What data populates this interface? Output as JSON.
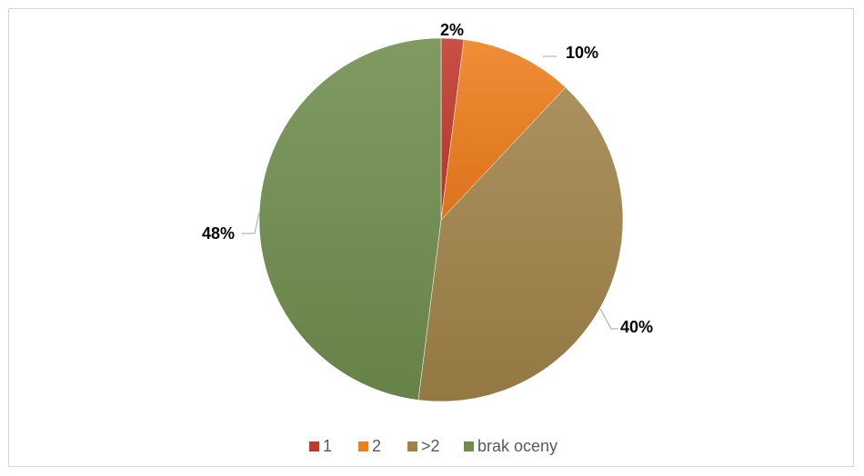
{
  "chart_data": {
    "type": "pie",
    "title": "",
    "slices": [
      {
        "label": "1",
        "value": 2,
        "display": "2%",
        "color": "#c0392b"
      },
      {
        "label": "2",
        "value": 10,
        "display": "10%",
        "color": "#ee7d1c"
      },
      {
        "label": ">2",
        "value": 40,
        "display": "40%",
        "color": "#a08248"
      },
      {
        "label": "brak oceny",
        "value": 48,
        "display": "48%",
        "color": "#6f8d4d"
      }
    ],
    "legend_position": "bottom",
    "start_angle": "top",
    "direction": "clockwise"
  }
}
